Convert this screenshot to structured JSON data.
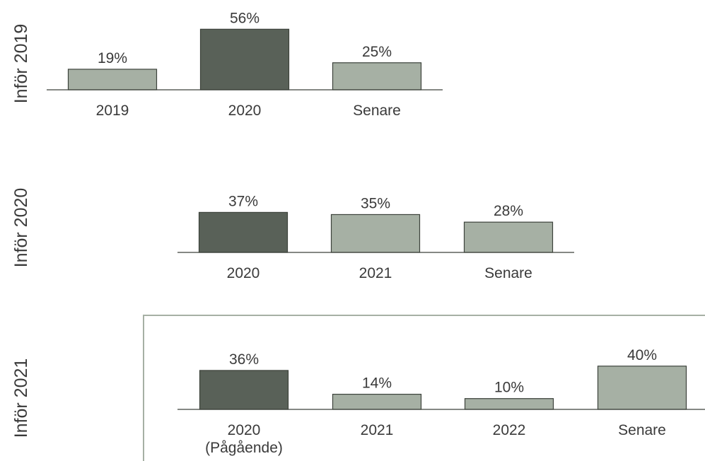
{
  "colors": {
    "highlight_bar": "#596158",
    "regular_bar": "#a6b0a4",
    "bar_stroke": "#3c423b",
    "axis": "#3c423b",
    "text": "#3a3a3a",
    "panel_border": "#a6b0a4"
  },
  "chart_data": [
    {
      "type": "bar",
      "row_label": "Inför 2019",
      "categories": [
        "2019",
        "2020",
        "Senare"
      ],
      "values": [
        19,
        56,
        25
      ],
      "value_labels": [
        "19%",
        "56%",
        "25%"
      ],
      "highlight_index": 1,
      "unit": "%"
    },
    {
      "type": "bar",
      "row_label": "Inför 2020",
      "categories": [
        "2020",
        "2021",
        "Senare"
      ],
      "values": [
        37,
        35,
        28
      ],
      "value_labels": [
        "37%",
        "35%",
        "28%"
      ],
      "highlight_index": 0,
      "unit": "%"
    },
    {
      "type": "bar",
      "row_label": "Inför 2021",
      "categories": [
        "2020\n(Pågående)",
        "2021",
        "2022",
        "Senare"
      ],
      "values": [
        36,
        14,
        10,
        40
      ],
      "value_labels": [
        "36%",
        "14%",
        "10%",
        "40%"
      ],
      "highlight_index": 0,
      "unit": "%",
      "boxed": true
    }
  ]
}
